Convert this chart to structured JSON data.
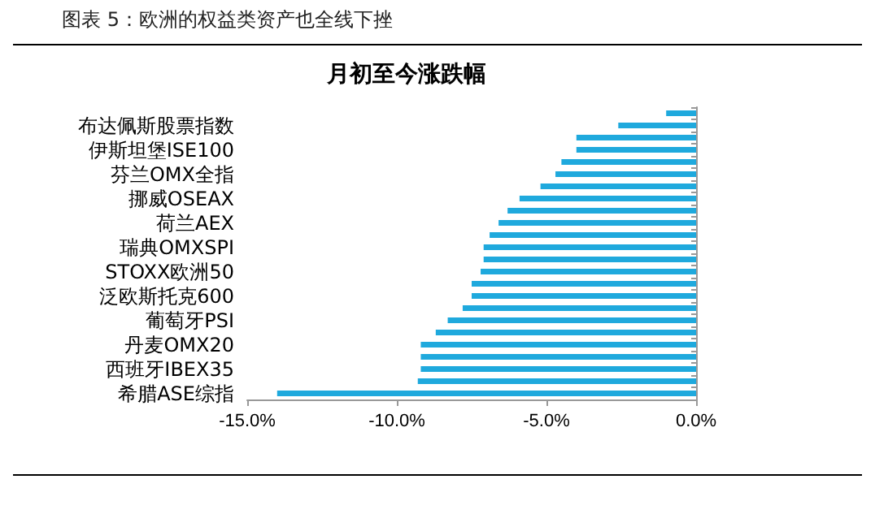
{
  "chart_data": {
    "type": "bar",
    "orientation": "horizontal",
    "title": "月初至今涨跌幅",
    "annotations": [
      "图表 5：欧洲的权益类资产也全线下挫"
    ],
    "categories": [
      null,
      "布达佩斯股票指数",
      null,
      "伊斯坦堡ISE100",
      null,
      "芬兰OMX全指",
      null,
      "挪威OSEAX",
      null,
      "荷兰AEX",
      null,
      "瑞典OMXSPI",
      null,
      "STOXX欧洲50",
      null,
      "泛欧斯托克600",
      null,
      "葡萄牙PSI",
      null,
      "丹麦OMX20",
      null,
      "西班牙IBEX35",
      null,
      "希腊ASE综指"
    ],
    "values": [
      -1.0,
      -2.6,
      -4.0,
      -4.0,
      -4.5,
      -4.7,
      -5.2,
      -5.9,
      -6.3,
      -6.6,
      -6.9,
      -7.1,
      -7.1,
      -7.2,
      -7.5,
      -7.5,
      -7.8,
      -8.3,
      -8.7,
      -9.2,
      -9.2,
      -9.2,
      -9.3,
      -14.0
    ],
    "color": "#1fa9dd",
    "xlim": [
      -15,
      0
    ],
    "xticks": [
      {
        "value": -15,
        "label": "-15.0%"
      },
      {
        "value": -10,
        "label": "-10.0%"
      },
      {
        "value": -5,
        "label": "-5.0%"
      },
      {
        "value": 0,
        "label": "0.0%"
      }
    ],
    "grid": false
  }
}
